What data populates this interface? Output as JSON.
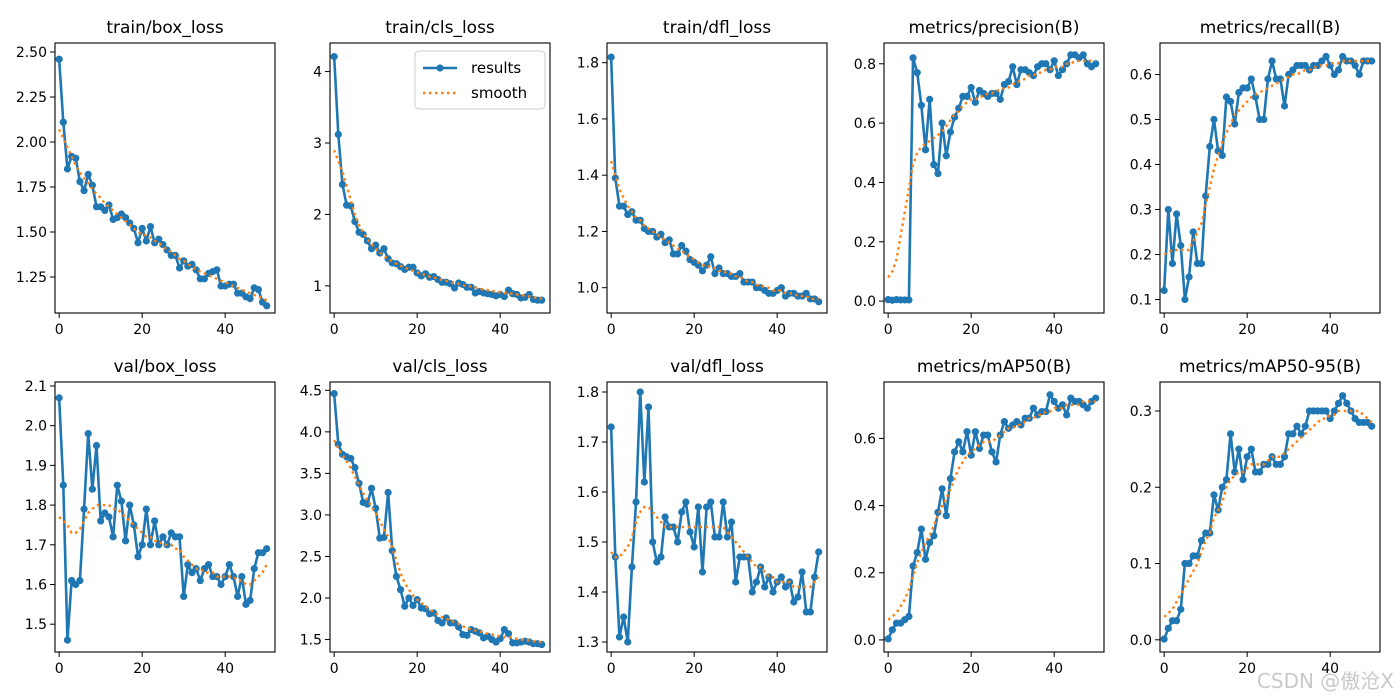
{
  "figure": {
    "series_names": [
      "results",
      "smooth"
    ],
    "colors": {
      "results": "#1f77b4",
      "smooth": "#ff7f0e"
    },
    "watermark": "CSDN @傲沧X"
  },
  "chart_data": [
    {
      "type": "line",
      "title": "train/box_loss",
      "xlim": [
        -1,
        52
      ],
      "ylim": [
        1.05,
        2.55
      ],
      "xticks": [
        0,
        20,
        40
      ],
      "yticks": [
        1.25,
        1.5,
        1.75,
        2.0,
        2.25,
        2.5
      ],
      "ytick_labels": [
        "1.25",
        "1.50",
        "1.75",
        "2.00",
        "2.25",
        "2.50"
      ],
      "results": [
        2.46,
        2.11,
        1.85,
        1.92,
        1.91,
        1.78,
        1.73,
        1.82,
        1.76,
        1.64,
        1.64,
        1.62,
        1.65,
        1.57,
        1.58,
        1.6,
        1.58,
        1.55,
        1.52,
        1.44,
        1.52,
        1.45,
        1.53,
        1.44,
        1.46,
        1.43,
        1.4,
        1.37,
        1.37,
        1.3,
        1.34,
        1.31,
        1.32,
        1.29,
        1.24,
        1.24,
        1.27,
        1.28,
        1.29,
        1.2,
        1.2,
        1.21,
        1.21,
        1.16,
        1.16,
        1.14,
        1.13,
        1.19,
        1.18,
        1.11,
        1.09
      ],
      "smooth": [
        2.07,
        2.02,
        1.97,
        1.92,
        1.87,
        1.83,
        1.8,
        1.77,
        1.74,
        1.71,
        1.69,
        1.66,
        1.64,
        1.62,
        1.6,
        1.58,
        1.56,
        1.54,
        1.52,
        1.5,
        1.49,
        1.48,
        1.47,
        1.45,
        1.44,
        1.42,
        1.4,
        1.39,
        1.37,
        1.35,
        1.34,
        1.32,
        1.31,
        1.29,
        1.28,
        1.27,
        1.26,
        1.25,
        1.24,
        1.23,
        1.22,
        1.21,
        1.2,
        1.19,
        1.18,
        1.17,
        1.16,
        1.15,
        1.14,
        1.13,
        1.12
      ]
    },
    {
      "type": "line",
      "title": "train/cls_loss",
      "xlim": [
        -1,
        52
      ],
      "ylim": [
        0.62,
        4.4
      ],
      "xticks": [
        0,
        20,
        40
      ],
      "yticks": [
        1,
        2,
        3,
        4
      ],
      "ytick_labels": [
        "1",
        "2",
        "3",
        "4"
      ],
      "legend": "top-right",
      "results": [
        4.21,
        3.12,
        2.42,
        2.13,
        2.12,
        1.9,
        1.75,
        1.72,
        1.63,
        1.52,
        1.57,
        1.46,
        1.52,
        1.38,
        1.32,
        1.31,
        1.27,
        1.23,
        1.26,
        1.26,
        1.18,
        1.14,
        1.17,
        1.12,
        1.13,
        1.09,
        1.05,
        1.05,
        1.03,
        0.97,
        1.04,
        1.02,
        0.98,
        0.98,
        0.9,
        0.92,
        0.9,
        0.89,
        0.88,
        0.86,
        0.88,
        0.85,
        0.94,
        0.89,
        0.88,
        0.83,
        0.84,
        0.88,
        0.81,
        0.8,
        0.8
      ],
      "smooth": [
        2.9,
        2.75,
        2.6,
        2.4,
        2.2,
        2.0,
        1.85,
        1.75,
        1.65,
        1.58,
        1.52,
        1.47,
        1.42,
        1.38,
        1.34,
        1.31,
        1.28,
        1.26,
        1.23,
        1.21,
        1.19,
        1.17,
        1.15,
        1.13,
        1.12,
        1.1,
        1.08,
        1.07,
        1.05,
        1.04,
        1.03,
        1.01,
        1.0,
        0.99,
        0.98,
        0.96,
        0.95,
        0.94,
        0.93,
        0.92,
        0.91,
        0.9,
        0.9,
        0.89,
        0.88,
        0.87,
        0.86,
        0.85,
        0.84,
        0.83,
        0.82
      ]
    },
    {
      "type": "line",
      "title": "train/dfl_loss",
      "xlim": [
        -1,
        52
      ],
      "ylim": [
        0.91,
        1.87
      ],
      "xticks": [
        0,
        20,
        40
      ],
      "yticks": [
        1.0,
        1.2,
        1.4,
        1.6,
        1.8
      ],
      "ytick_labels": [
        "1.0",
        "1.2",
        "1.4",
        "1.6",
        "1.8"
      ],
      "results": [
        1.82,
        1.39,
        1.29,
        1.29,
        1.26,
        1.27,
        1.24,
        1.24,
        1.21,
        1.2,
        1.2,
        1.18,
        1.19,
        1.16,
        1.17,
        1.12,
        1.12,
        1.15,
        1.13,
        1.1,
        1.09,
        1.08,
        1.06,
        1.08,
        1.11,
        1.05,
        1.07,
        1.05,
        1.05,
        1.04,
        1.04,
        1.05,
        1.02,
        1.02,
        1.02,
        1.0,
        1.0,
        0.99,
        0.98,
        0.98,
        0.99,
        1.0,
        0.97,
        0.98,
        0.98,
        0.97,
        0.97,
        0.98,
        0.96,
        0.96,
        0.95
      ],
      "smooth": [
        1.45,
        1.4,
        1.35,
        1.32,
        1.29,
        1.27,
        1.25,
        1.24,
        1.22,
        1.21,
        1.2,
        1.19,
        1.18,
        1.17,
        1.16,
        1.15,
        1.14,
        1.13,
        1.12,
        1.11,
        1.1,
        1.09,
        1.08,
        1.08,
        1.07,
        1.07,
        1.06,
        1.06,
        1.05,
        1.05,
        1.04,
        1.04,
        1.03,
        1.02,
        1.02,
        1.01,
        1.01,
        1.0,
        1.0,
        0.99,
        0.99,
        0.99,
        0.98,
        0.98,
        0.98,
        0.97,
        0.97,
        0.97,
        0.96,
        0.96,
        0.96
      ]
    },
    {
      "type": "line",
      "title": "metrics/precision(B)",
      "xlim": [
        -1,
        52
      ],
      "ylim": [
        -0.04,
        0.87
      ],
      "xticks": [
        0,
        20,
        40
      ],
      "yticks": [
        0.0,
        0.2,
        0.4,
        0.6,
        0.8
      ],
      "ytick_labels": [
        "0.0",
        "0.2",
        "0.4",
        "0.6",
        "0.8"
      ],
      "results": [
        0.005,
        0.003,
        0.005,
        0.004,
        0.004,
        0.004,
        0.82,
        0.77,
        0.66,
        0.51,
        0.68,
        0.46,
        0.43,
        0.6,
        0.49,
        0.57,
        0.62,
        0.65,
        0.69,
        0.69,
        0.72,
        0.67,
        0.71,
        0.7,
        0.69,
        0.7,
        0.7,
        0.68,
        0.73,
        0.74,
        0.79,
        0.73,
        0.78,
        0.78,
        0.77,
        0.76,
        0.79,
        0.8,
        0.8,
        0.78,
        0.81,
        0.76,
        0.78,
        0.8,
        0.83,
        0.83,
        0.82,
        0.83,
        0.8,
        0.79,
        0.8
      ],
      "smooth": [
        0.08,
        0.1,
        0.14,
        0.22,
        0.3,
        0.38,
        0.46,
        0.5,
        0.52,
        0.53,
        0.54,
        0.55,
        0.56,
        0.57,
        0.59,
        0.61,
        0.63,
        0.64,
        0.66,
        0.67,
        0.68,
        0.68,
        0.69,
        0.69,
        0.7,
        0.7,
        0.71,
        0.71,
        0.72,
        0.72,
        0.73,
        0.74,
        0.74,
        0.75,
        0.76,
        0.76,
        0.77,
        0.77,
        0.78,
        0.78,
        0.79,
        0.79,
        0.79,
        0.8,
        0.8,
        0.81,
        0.81,
        0.81,
        0.81,
        0.81,
        0.81
      ]
    },
    {
      "type": "line",
      "title": "metrics/recall(B)",
      "xlim": [
        -1,
        52
      ],
      "ylim": [
        0.07,
        0.67
      ],
      "xticks": [
        0,
        20,
        40
      ],
      "yticks": [
        0.1,
        0.2,
        0.3,
        0.4,
        0.5,
        0.6
      ],
      "ytick_labels": [
        "0.1",
        "0.2",
        "0.3",
        "0.4",
        "0.5",
        "0.6"
      ],
      "results": [
        0.12,
        0.3,
        0.18,
        0.29,
        0.22,
        0.1,
        0.15,
        0.25,
        0.18,
        0.18,
        0.33,
        0.44,
        0.5,
        0.43,
        0.42,
        0.55,
        0.54,
        0.49,
        0.56,
        0.57,
        0.57,
        0.59,
        0.55,
        0.5,
        0.5,
        0.59,
        0.63,
        0.59,
        0.59,
        0.53,
        0.6,
        0.61,
        0.62,
        0.62,
        0.62,
        0.61,
        0.62,
        0.62,
        0.63,
        0.64,
        0.62,
        0.6,
        0.61,
        0.64,
        0.63,
        0.63,
        0.62,
        0.6,
        0.63,
        0.63,
        0.63
      ],
      "smooth": [
        0.2,
        0.205,
        0.21,
        0.21,
        0.21,
        0.21,
        0.21,
        0.23,
        0.25,
        0.27,
        0.31,
        0.35,
        0.39,
        0.42,
        0.45,
        0.47,
        0.49,
        0.51,
        0.52,
        0.53,
        0.54,
        0.55,
        0.555,
        0.56,
        0.565,
        0.57,
        0.575,
        0.58,
        0.585,
        0.59,
        0.595,
        0.6,
        0.6,
        0.605,
        0.61,
        0.61,
        0.615,
        0.62,
        0.62,
        0.62,
        0.625,
        0.625,
        0.625,
        0.63,
        0.63,
        0.63,
        0.63,
        0.63,
        0.63,
        0.63,
        0.63
      ]
    },
    {
      "type": "line",
      "title": "val/box_loss",
      "xlim": [
        -1,
        52
      ],
      "ylim": [
        1.43,
        2.11
      ],
      "xticks": [
        0,
        20,
        40
      ],
      "yticks": [
        1.5,
        1.6,
        1.7,
        1.8,
        1.9,
        2.0,
        2.1
      ],
      "ytick_labels": [
        "1.5",
        "1.6",
        "1.7",
        "1.8",
        "1.9",
        "2.0",
        "2.1"
      ],
      "results": [
        2.07,
        1.85,
        1.46,
        1.61,
        1.6,
        1.61,
        1.79,
        1.98,
        1.84,
        1.95,
        1.76,
        1.78,
        1.77,
        1.72,
        1.85,
        1.81,
        1.71,
        1.8,
        1.75,
        1.67,
        1.7,
        1.79,
        1.7,
        1.76,
        1.7,
        1.72,
        1.7,
        1.73,
        1.72,
        1.72,
        1.57,
        1.65,
        1.63,
        1.64,
        1.61,
        1.64,
        1.65,
        1.62,
        1.62,
        1.6,
        1.62,
        1.65,
        1.62,
        1.57,
        1.62,
        1.55,
        1.56,
        1.64,
        1.68,
        1.68,
        1.69
      ],
      "smooth": [
        1.77,
        1.76,
        1.75,
        1.73,
        1.73,
        1.74,
        1.76,
        1.78,
        1.79,
        1.8,
        1.8,
        1.8,
        1.8,
        1.79,
        1.79,
        1.78,
        1.77,
        1.76,
        1.75,
        1.74,
        1.73,
        1.72,
        1.72,
        1.71,
        1.71,
        1.7,
        1.7,
        1.7,
        1.69,
        1.69,
        1.67,
        1.66,
        1.65,
        1.64,
        1.64,
        1.63,
        1.63,
        1.63,
        1.62,
        1.62,
        1.62,
        1.62,
        1.62,
        1.61,
        1.61,
        1.6,
        1.6,
        1.61,
        1.62,
        1.63,
        1.65
      ]
    },
    {
      "type": "line",
      "title": "val/cls_loss",
      "xlim": [
        -1,
        52
      ],
      "ylim": [
        1.35,
        4.6
      ],
      "xticks": [
        0,
        20,
        40
      ],
      "yticks": [
        1.5,
        2.0,
        2.5,
        3.0,
        3.5,
        4.0,
        4.5
      ],
      "ytick_labels": [
        "1.5",
        "2.0",
        "2.5",
        "3.0",
        "3.5",
        "4.0",
        "4.5"
      ],
      "results": [
        4.46,
        3.85,
        3.73,
        3.7,
        3.68,
        3.57,
        3.38,
        3.15,
        3.13,
        3.32,
        3.08,
        2.72,
        2.73,
        3.27,
        2.57,
        2.26,
        2.1,
        1.9,
        2.0,
        1.91,
        1.98,
        1.88,
        1.87,
        1.81,
        1.82,
        1.73,
        1.7,
        1.76,
        1.7,
        1.7,
        1.65,
        1.56,
        1.55,
        1.62,
        1.6,
        1.58,
        1.52,
        1.54,
        1.5,
        1.47,
        1.51,
        1.62,
        1.57,
        1.46,
        1.46,
        1.47,
        1.48,
        1.47,
        1.45,
        1.45,
        1.44
      ],
      "smooth": [
        3.9,
        3.8,
        3.72,
        3.65,
        3.56,
        3.46,
        3.36,
        3.26,
        3.18,
        3.1,
        3.02,
        2.92,
        2.83,
        2.74,
        2.6,
        2.45,
        2.3,
        2.18,
        2.1,
        2.03,
        1.98,
        1.94,
        1.9,
        1.86,
        1.83,
        1.8,
        1.77,
        1.75,
        1.73,
        1.71,
        1.69,
        1.66,
        1.64,
        1.62,
        1.61,
        1.6,
        1.58,
        1.57,
        1.56,
        1.55,
        1.54,
        1.53,
        1.53,
        1.52,
        1.51,
        1.5,
        1.49,
        1.49,
        1.48,
        1.47,
        1.47
      ]
    },
    {
      "type": "line",
      "title": "val/dfl_loss",
      "xlim": [
        -1,
        52
      ],
      "ylim": [
        1.28,
        1.82
      ],
      "xticks": [
        0,
        20,
        40
      ],
      "yticks": [
        1.3,
        1.4,
        1.5,
        1.6,
        1.7,
        1.8
      ],
      "ytick_labels": [
        "1.3",
        "1.4",
        "1.5",
        "1.6",
        "1.7",
        "1.8"
      ],
      "results": [
        1.73,
        1.47,
        1.31,
        1.35,
        1.3,
        1.45,
        1.58,
        1.8,
        1.62,
        1.77,
        1.5,
        1.46,
        1.47,
        1.55,
        1.53,
        1.53,
        1.5,
        1.56,
        1.58,
        1.52,
        1.49,
        1.57,
        1.44,
        1.57,
        1.58,
        1.51,
        1.51,
        1.58,
        1.51,
        1.54,
        1.42,
        1.47,
        1.47,
        1.47,
        1.4,
        1.42,
        1.45,
        1.41,
        1.43,
        1.4,
        1.42,
        1.43,
        1.41,
        1.42,
        1.38,
        1.39,
        1.44,
        1.36,
        1.36,
        1.43,
        1.48
      ],
      "smooth": [
        1.48,
        1.47,
        1.47,
        1.48,
        1.49,
        1.51,
        1.54,
        1.56,
        1.57,
        1.57,
        1.56,
        1.55,
        1.54,
        1.53,
        1.53,
        1.53,
        1.53,
        1.53,
        1.53,
        1.53,
        1.53,
        1.53,
        1.53,
        1.53,
        1.53,
        1.53,
        1.53,
        1.53,
        1.52,
        1.51,
        1.5,
        1.49,
        1.48,
        1.47,
        1.46,
        1.45,
        1.45,
        1.44,
        1.43,
        1.43,
        1.42,
        1.42,
        1.42,
        1.42,
        1.41,
        1.41,
        1.41,
        1.41,
        1.41,
        1.42,
        1.43
      ]
    },
    {
      "type": "line",
      "title": "metrics/mAP50(B)",
      "xlim": [
        -1,
        52
      ],
      "ylim": [
        -0.036,
        0.768
      ],
      "xticks": [
        0,
        20,
        40
      ],
      "yticks": [
        0.0,
        0.2,
        0.4,
        0.6
      ],
      "ytick_labels": [
        "0.0",
        "0.2",
        "0.4",
        "0.6"
      ],
      "results": [
        0.003,
        0.03,
        0.05,
        0.05,
        0.06,
        0.07,
        0.22,
        0.26,
        0.33,
        0.24,
        0.29,
        0.31,
        0.38,
        0.45,
        0.37,
        0.48,
        0.56,
        0.59,
        0.56,
        0.62,
        0.55,
        0.62,
        0.57,
        0.61,
        0.61,
        0.56,
        0.53,
        0.61,
        0.65,
        0.63,
        0.64,
        0.65,
        0.64,
        0.66,
        0.66,
        0.69,
        0.67,
        0.68,
        0.68,
        0.73,
        0.71,
        0.69,
        0.7,
        0.67,
        0.72,
        0.71,
        0.71,
        0.7,
        0.69,
        0.71,
        0.72
      ],
      "smooth": [
        0.06,
        0.07,
        0.08,
        0.1,
        0.12,
        0.15,
        0.19,
        0.23,
        0.26,
        0.29,
        0.31,
        0.34,
        0.37,
        0.4,
        0.42,
        0.45,
        0.48,
        0.51,
        0.53,
        0.55,
        0.56,
        0.57,
        0.58,
        0.59,
        0.59,
        0.59,
        0.6,
        0.61,
        0.62,
        0.63,
        0.63,
        0.64,
        0.64,
        0.65,
        0.66,
        0.66,
        0.67,
        0.67,
        0.68,
        0.68,
        0.69,
        0.69,
        0.69,
        0.7,
        0.7,
        0.7,
        0.7,
        0.71,
        0.71,
        0.71,
        0.71
      ]
    },
    {
      "type": "line",
      "title": "metrics/mAP50-95(B)",
      "xlim": [
        -1,
        52
      ],
      "ylim": [
        -0.016,
        0.338
      ],
      "xticks": [
        0,
        20,
        40
      ],
      "yticks": [
        0.0,
        0.1,
        0.2,
        0.3
      ],
      "ytick_labels": [
        "0.0",
        "0.1",
        "0.2",
        "0.3"
      ],
      "results": [
        0.001,
        0.015,
        0.025,
        0.025,
        0.04,
        0.1,
        0.1,
        0.11,
        0.11,
        0.13,
        0.14,
        0.14,
        0.19,
        0.17,
        0.2,
        0.21,
        0.27,
        0.22,
        0.25,
        0.21,
        0.24,
        0.25,
        0.22,
        0.22,
        0.23,
        0.23,
        0.24,
        0.23,
        0.23,
        0.24,
        0.27,
        0.27,
        0.28,
        0.27,
        0.28,
        0.3,
        0.3,
        0.3,
        0.3,
        0.3,
        0.29,
        0.3,
        0.31,
        0.32,
        0.31,
        0.3,
        0.29,
        0.285,
        0.285,
        0.285,
        0.28
      ],
      "smooth": [
        0.03,
        0.035,
        0.04,
        0.05,
        0.06,
        0.07,
        0.08,
        0.09,
        0.1,
        0.115,
        0.13,
        0.14,
        0.16,
        0.17,
        0.18,
        0.2,
        0.21,
        0.215,
        0.22,
        0.22,
        0.225,
        0.23,
        0.23,
        0.23,
        0.23,
        0.235,
        0.24,
        0.24,
        0.24,
        0.245,
        0.25,
        0.255,
        0.26,
        0.265,
        0.27,
        0.275,
        0.28,
        0.285,
        0.29,
        0.29,
        0.295,
        0.295,
        0.3,
        0.3,
        0.3,
        0.3,
        0.3,
        0.3,
        0.295,
        0.29,
        0.285
      ]
    }
  ]
}
